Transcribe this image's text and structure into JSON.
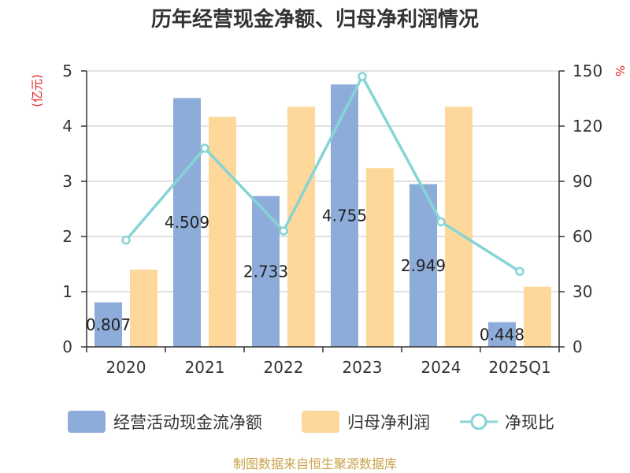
{
  "title": "历年经营现金净额、归母净利润情况",
  "source": "制图数据来自恒生聚源数据库",
  "chart_data": {
    "type": "bar",
    "categories": [
      "2020",
      "2021",
      "2022",
      "2023",
      "2024",
      "2025Q1"
    ],
    "left_axis": {
      "unit": "(亿元)",
      "ylim": [
        0,
        5
      ],
      "ticks": [
        "0",
        "1",
        "2",
        "3",
        "4",
        "5"
      ]
    },
    "right_axis": {
      "unit": "%",
      "ylim": [
        0,
        150
      ],
      "ticks": [
        "0",
        "30",
        "60",
        "90",
        "120",
        "150"
      ]
    },
    "series": [
      {
        "name": "经营活动现金流净额",
        "kind": "bar",
        "axis": "left",
        "color": "#8eacd9",
        "values": [
          0.807,
          4.509,
          2.733,
          4.755,
          2.949,
          0.448
        ],
        "labels": [
          "0.807",
          "4.509",
          "2.733",
          "4.755",
          "2.949",
          "0.448"
        ]
      },
      {
        "name": "归母净利润",
        "kind": "bar",
        "axis": "left",
        "color": "#fdd89a",
        "values": [
          1.4,
          4.17,
          4.35,
          3.24,
          4.35,
          1.09
        ]
      },
      {
        "name": "净现比",
        "kind": "line",
        "axis": "right",
        "color": "#86d4d6",
        "values": [
          58,
          108,
          63,
          147,
          68,
          41
        ]
      }
    ],
    "grid": true,
    "legend_position": "bottom"
  }
}
